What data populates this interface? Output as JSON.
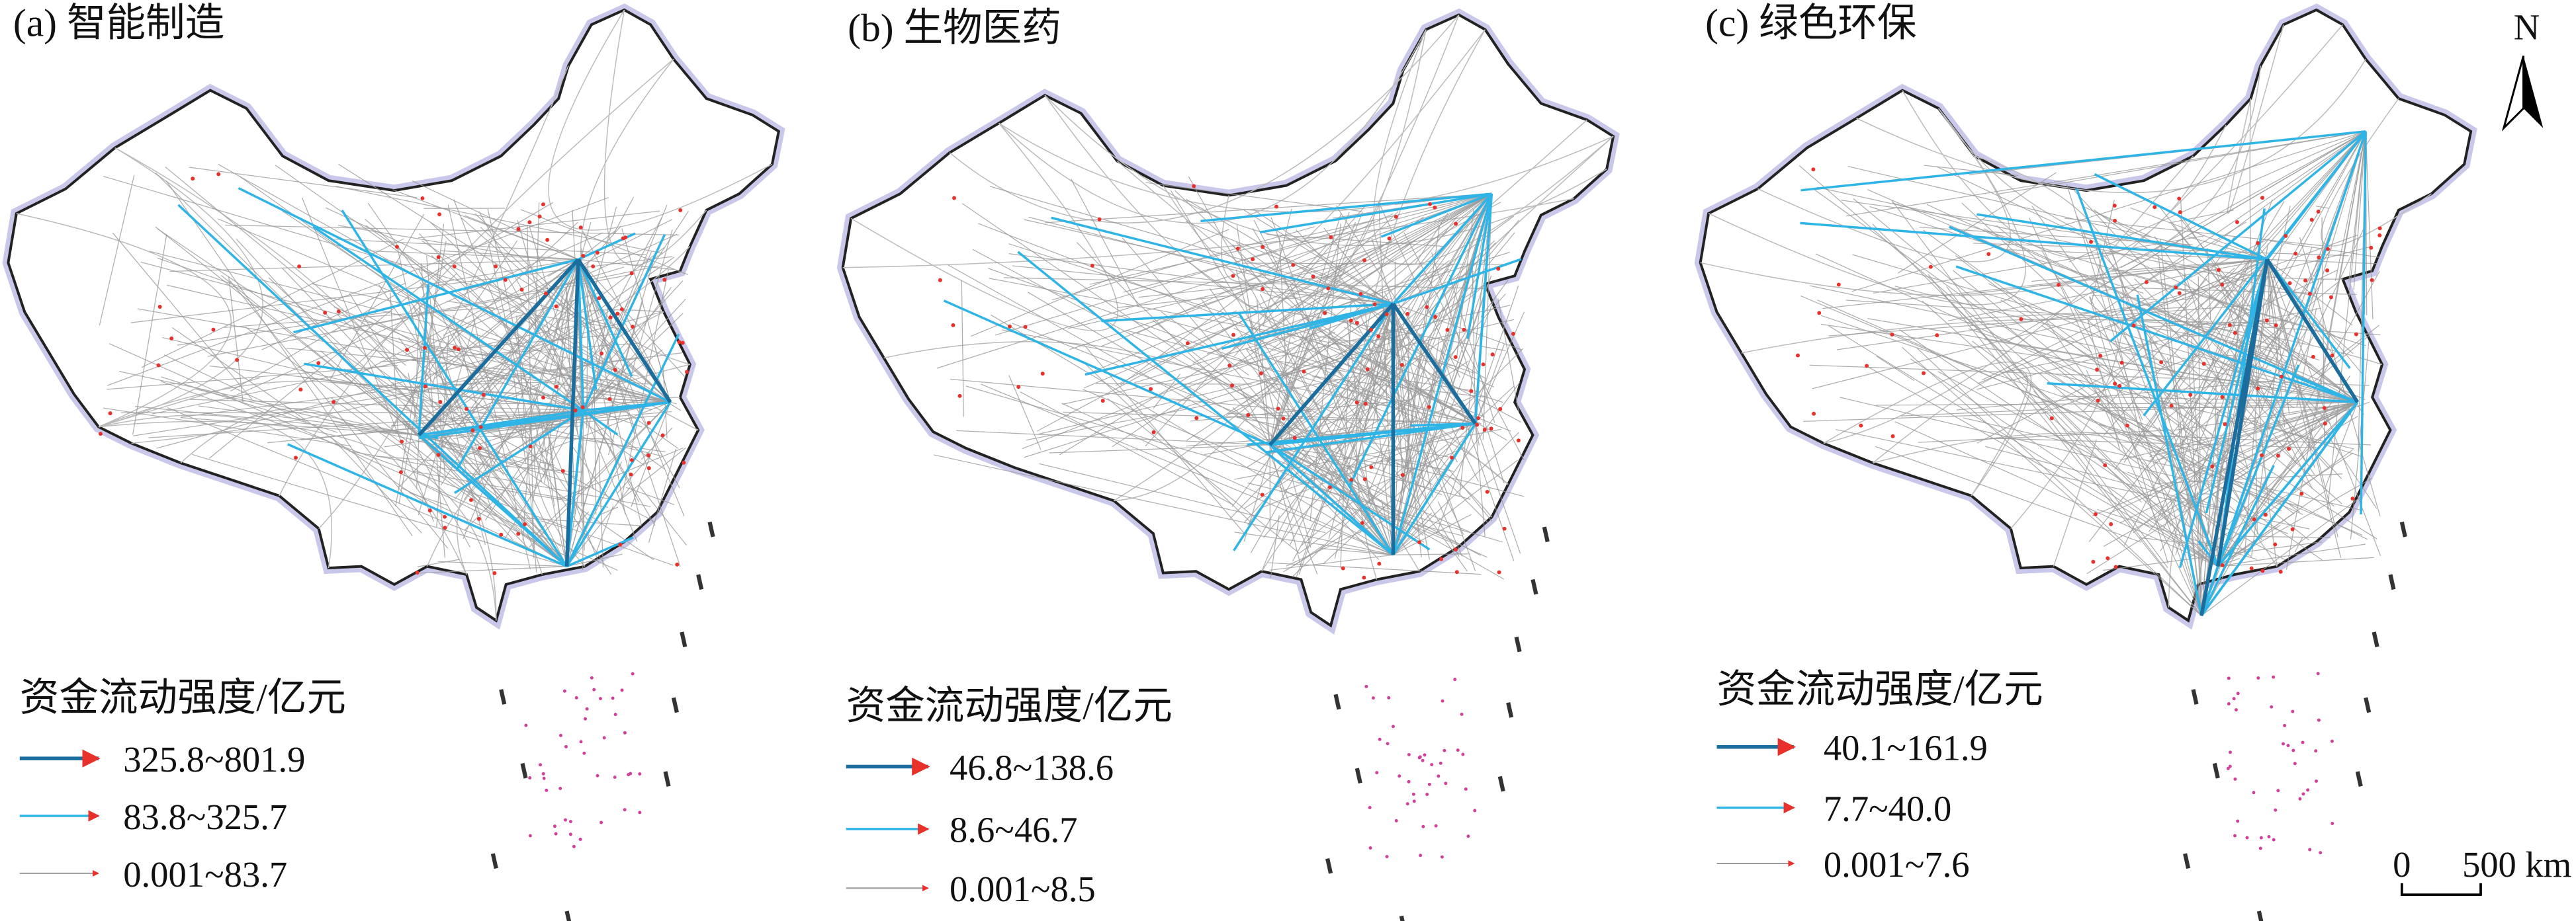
{
  "panels": [
    {
      "title": "(a) 智能制造",
      "legend": {
        "title": "资金流动强度/亿元",
        "items": [
          "325.8~801.9",
          "83.8~325.7",
          "0.001~83.7"
        ]
      }
    },
    {
      "title": "(b) 生物医药",
      "legend": {
        "title": "资金流动强度/亿元",
        "items": [
          "46.8~138.6",
          "8.6~46.7",
          "0.001~8.5"
        ]
      }
    },
    {
      "title": "(c) 绿色环保",
      "legend": {
        "title": "资金流动强度/亿元",
        "items": [
          "40.1~161.9",
          "7.7~40.0",
          "0.001~7.6"
        ]
      }
    }
  ],
  "north_label": "N",
  "scale_bar": {
    "start": "0",
    "end": "500 km"
  }
}
